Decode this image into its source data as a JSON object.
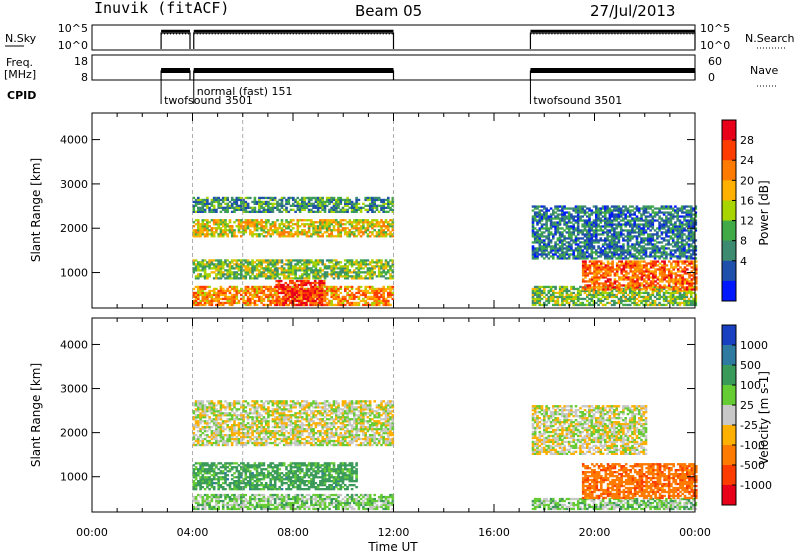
{
  "header": {
    "station": "Inuvik (fitACF)",
    "beam": "Beam 05",
    "date": "27/Jul/2013"
  },
  "top_panels": {
    "nsky": {
      "label": "N.Sky",
      "ticks_left": [
        "10^5",
        "10^0"
      ],
      "ticks_right": [
        "10^5",
        "10^0"
      ],
      "right_label": "N.Search"
    },
    "freq": {
      "label_line1": "Freq.",
      "label_line2": "[MHz]",
      "ticks_left": [
        "18",
        "8"
      ],
      "ticks_right": [
        "60",
        "0"
      ],
      "right_label": "Nave"
    },
    "cpid": {
      "label": "CPID",
      "segments": [
        {
          "name": "twofsound 3501",
          "start_h": 2.75
        },
        {
          "name": "normal (fast) 151",
          "start_h": 4.05
        },
        {
          "name": "twofsound 3501",
          "start_h": 17.45
        }
      ]
    },
    "data_blocks_h": [
      [
        2.75,
        3.9
      ],
      [
        4.05,
        12.0
      ],
      [
        17.45,
        24.0
      ]
    ]
  },
  "chart_data": [
    {
      "type": "heatmap",
      "name": "power",
      "xlabel": "Time UT",
      "ylabel": "Slant Range [km]",
      "xlim": [
        0,
        24
      ],
      "ylim": [
        200,
        4600
      ],
      "yticks": [
        1000,
        2000,
        3000,
        4000
      ],
      "xticks": [
        "00:00",
        "04:00",
        "08:00",
        "12:00",
        "16:00",
        "20:00",
        "00:00"
      ],
      "colorbar": {
        "label": "Power [dB]",
        "ticks": [
          "28",
          "24",
          "20",
          "16",
          "12",
          "8",
          "4"
        ],
        "colors": [
          "#e8001a",
          "#ff3c00",
          "#ff7a00",
          "#ffb000",
          "#a8d400",
          "#3faa46",
          "#3c8a70",
          "#1e4faa",
          "#0018ff"
        ]
      },
      "echo_bands": [
        {
          "t0": 4.0,
          "t1": 12.0,
          "r0": 250,
          "r1": 700,
          "power": 22
        },
        {
          "t0": 7.3,
          "t1": 9.2,
          "r0": 250,
          "r1": 800,
          "power": 28
        },
        {
          "t0": 4.0,
          "t1": 12.0,
          "r0": 850,
          "r1": 1300,
          "power": 14
        },
        {
          "t0": 4.0,
          "t1": 12.0,
          "r0": 1800,
          "r1": 2200,
          "power": 18
        },
        {
          "t0": 4.0,
          "t1": 12.0,
          "r0": 2350,
          "r1": 2700,
          "power": 10
        },
        {
          "t0": 17.5,
          "t1": 24.0,
          "r0": 250,
          "r1": 700,
          "power": 14
        },
        {
          "t0": 19.5,
          "t1": 24.0,
          "r0": 600,
          "r1": 1250,
          "power": 24
        },
        {
          "t0": 17.5,
          "t1": 24.0,
          "r0": 1300,
          "r1": 2500,
          "power": 8
        }
      ]
    },
    {
      "type": "heatmap",
      "name": "velocity",
      "xlabel": "Time UT",
      "ylabel": "Slant Range [km]",
      "xlim": [
        0,
        24
      ],
      "ylim": [
        200,
        4600
      ],
      "yticks": [
        1000,
        2000,
        3000,
        4000
      ],
      "xticks": [
        "00:00",
        "04:00",
        "08:00",
        "12:00",
        "16:00",
        "20:00",
        "00:00"
      ],
      "colorbar": {
        "label": "Velocity [m s-1]",
        "ticks": [
          "1000",
          "500",
          "100",
          "25",
          "-25",
          "-100",
          "-500",
          "-1000"
        ],
        "colors": [
          "#1840c0",
          "#2f7aa0",
          "#3a9a5a",
          "#66cc33",
          "#c8c8c8",
          "#ffb000",
          "#ff7a00",
          "#ff3c00",
          "#e8001a"
        ]
      },
      "echo_bands": [
        {
          "t0": 4.0,
          "t1": 12.0,
          "r0": 250,
          "r1": 600,
          "velocity": 100
        },
        {
          "t0": 4.0,
          "t1": 10.5,
          "r0": 700,
          "r1": 1300,
          "velocity": 250
        },
        {
          "t0": 4.0,
          "t1": 12.0,
          "r0": 1700,
          "r1": 2700,
          "velocity": 0
        },
        {
          "t0": 17.5,
          "t1": 24.0,
          "r0": 250,
          "r1": 500,
          "velocity": 100
        },
        {
          "t0": 19.5,
          "t1": 24.0,
          "r0": 500,
          "r1": 1300,
          "velocity": -300
        },
        {
          "t0": 17.5,
          "t1": 22.0,
          "r0": 1500,
          "r1": 2600,
          "velocity": 0
        }
      ]
    }
  ]
}
